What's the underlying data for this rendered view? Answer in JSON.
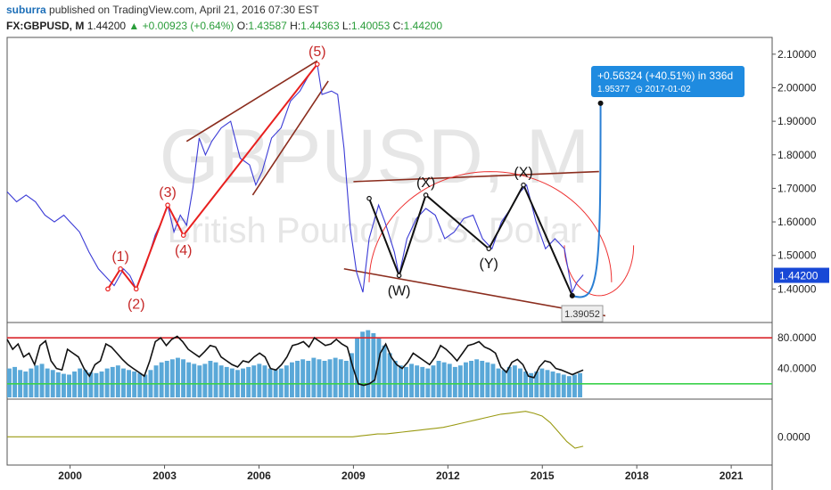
{
  "header": {
    "author": "suburra",
    "published_text": "published on TradingView.com, April 21, 2016 07:30 EST",
    "symbol": "FX:GBPUSD, M",
    "last": "1.44200",
    "change_arrow": "▲",
    "change": "+0.00923 (+0.64%)",
    "open_label": "O:",
    "open": "1.43587",
    "high_label": "H:",
    "high": "1.44363",
    "low_label": "L:",
    "low": "1.40053",
    "close_label": "C:",
    "close": "1.44200"
  },
  "watermark": {
    "symbol": "GBPUSD, M",
    "name": "British Pound / U.S. Dollar"
  },
  "colors": {
    "price": "#3b3bd6",
    "wave_red": "#e8201f",
    "trend_brown": "#8b2d1e",
    "black_wave": "#111111",
    "projection": "#2a7fd4",
    "overbought": "#d9262b",
    "oversold": "#3ad14a",
    "osc_line": "#111111",
    "hist": "#5aa8d8",
    "bottom_line": "#9a9a12",
    "price_tag": "#1848d6",
    "measure_box": "#1f8be0"
  },
  "chart_data": [
    {
      "type": "line",
      "title": "FX:GBPUSD, M",
      "ylim": [
        1.3,
        2.15
      ],
      "y_ticks": [
        "1.40000",
        "1.50000",
        "1.60000",
        "1.70000",
        "1.80000",
        "1.90000",
        "2.00000",
        "2.10000"
      ],
      "y_tick_values": [
        1.4,
        1.5,
        1.6,
        1.7,
        1.8,
        1.9,
        2.0,
        2.1
      ],
      "last_price_label": "1.44200",
      "last_price": 1.442,
      "x_ticks": [
        "2000",
        "2003",
        "2006",
        "2009",
        "2012",
        "2015",
        "2018",
        "2021"
      ],
      "x_tick_values": [
        2000,
        2003,
        2006,
        2009,
        2012,
        2015,
        2018,
        2021
      ],
      "xlim": [
        1998.0,
        2022.3
      ],
      "series": [
        {
          "points": [
            [
              1998.0,
              1.69
            ],
            [
              1998.3,
              1.66
            ],
            [
              1998.6,
              1.68
            ],
            [
              1998.9,
              1.66
            ],
            [
              1999.2,
              1.62
            ],
            [
              1999.5,
              1.6
            ],
            [
              1999.8,
              1.62
            ],
            [
              2000.0,
              1.6
            ],
            [
              2000.3,
              1.57
            ],
            [
              2000.6,
              1.51
            ],
            [
              2000.9,
              1.46
            ],
            [
              2001.2,
              1.43
            ],
            [
              2001.4,
              1.41
            ],
            [
              2001.7,
              1.46
            ],
            [
              2001.9,
              1.44
            ],
            [
              2002.1,
              1.4
            ],
            [
              2002.4,
              1.47
            ],
            [
              2002.7,
              1.56
            ],
            [
              2002.9,
              1.6
            ],
            [
              2003.1,
              1.65
            ],
            [
              2003.3,
              1.57
            ],
            [
              2003.5,
              1.62
            ],
            [
              2003.7,
              1.59
            ],
            [
              2003.9,
              1.7
            ],
            [
              2004.1,
              1.85
            ],
            [
              2004.3,
              1.8
            ],
            [
              2004.5,
              1.84
            ],
            [
              2004.8,
              1.88
            ],
            [
              2005.1,
              1.9
            ],
            [
              2005.4,
              1.79
            ],
            [
              2005.7,
              1.77
            ],
            [
              2005.9,
              1.71
            ],
            [
              2006.1,
              1.75
            ],
            [
              2006.4,
              1.85
            ],
            [
              2006.7,
              1.88
            ],
            [
              2007.0,
              1.96
            ],
            [
              2007.3,
              1.99
            ],
            [
              2007.6,
              2.04
            ],
            [
              2007.85,
              2.07
            ],
            [
              2008.0,
              1.98
            ],
            [
              2008.3,
              1.99
            ],
            [
              2008.5,
              1.98
            ],
            [
              2008.7,
              1.82
            ],
            [
              2008.9,
              1.58
            ],
            [
              2009.1,
              1.45
            ],
            [
              2009.3,
              1.39
            ],
            [
              2009.5,
              1.55
            ],
            [
              2009.8,
              1.65
            ],
            [
              2010.0,
              1.6
            ],
            [
              2010.3,
              1.51
            ],
            [
              2010.45,
              1.44
            ],
            [
              2010.7,
              1.55
            ],
            [
              2011.0,
              1.61
            ],
            [
              2011.3,
              1.64
            ],
            [
              2011.6,
              1.62
            ],
            [
              2011.9,
              1.55
            ],
            [
              2012.2,
              1.57
            ],
            [
              2012.5,
              1.61
            ],
            [
              2012.8,
              1.62
            ],
            [
              2013.1,
              1.55
            ],
            [
              2013.4,
              1.52
            ],
            [
              2013.7,
              1.6
            ],
            [
              2014.0,
              1.64
            ],
            [
              2014.3,
              1.69
            ],
            [
              2014.5,
              1.71
            ],
            [
              2014.8,
              1.6
            ],
            [
              2015.1,
              1.52
            ],
            [
              2015.4,
              1.55
            ],
            [
              2015.7,
              1.52
            ],
            [
              2015.95,
              1.39
            ],
            [
              2016.1,
              1.42
            ],
            [
              2016.3,
              1.442
            ]
          ]
        },
        {
          "name": "elliott-impulse",
          "points": [
            [
              2001.2,
              1.4
            ],
            [
              2001.6,
              1.46
            ],
            [
              2002.1,
              1.4
            ],
            [
              2003.1,
              1.65
            ],
            [
              2003.6,
              1.56
            ],
            [
              2007.85,
              2.07
            ]
          ],
          "labels": [
            "",
            "(1)",
            "(2)",
            "(3)",
            "(4)",
            "(5)"
          ]
        },
        {
          "name": "wxyxy-correction",
          "points": [
            [
              2009.5,
              1.67
            ],
            [
              2010.45,
              1.44
            ],
            [
              2011.3,
              1.68
            ],
            [
              2013.3,
              1.52
            ],
            [
              2014.4,
              1.71
            ],
            [
              2015.95,
              1.38
            ]
          ],
          "labels": [
            "",
            "(W)",
            "(X)",
            "(Y)",
            "(X)",
            ""
          ]
        }
      ],
      "trendlines": [
        {
          "from": [
            2003.7,
            1.84
          ],
          "to": [
            2007.85,
            2.08
          ]
        },
        {
          "from": [
            2005.8,
            1.68
          ],
          "to": [
            2008.2,
            2.02
          ]
        },
        {
          "from": [
            2009.0,
            1.72
          ],
          "to": [
            2016.8,
            1.75
          ]
        },
        {
          "from": [
            2008.7,
            1.46
          ],
          "to": [
            2017.0,
            1.32
          ]
        }
      ],
      "projection": {
        "from": [
          2015.95,
          1.38
        ],
        "to": [
          2016.85,
          1.95377
        ],
        "measure_text": "+0.56324 (+40.51%) in 336d",
        "target_text": "1.95377",
        "date_text": "2017-01-02"
      },
      "low_label": "1.39052"
    },
    {
      "type": "line",
      "ylim": [
        0,
        100
      ],
      "y_ticks": [
        "40.0000",
        "80.0000"
      ],
      "y_tick_values": [
        40,
        80
      ],
      "levels": [
        80,
        20
      ],
      "series": [
        {
          "values": [
            78,
            65,
            72,
            55,
            60,
            45,
            70,
            76,
            50,
            40,
            38,
            65,
            60,
            55,
            40,
            30,
            45,
            50,
            72,
            68,
            60,
            52,
            45,
            40,
            35,
            30,
            50,
            75,
            80,
            70,
            78,
            82,
            75,
            65,
            60,
            55,
            62,
            70,
            68,
            55,
            50,
            45,
            42,
            50,
            48,
            55,
            60,
            55,
            40,
            38,
            45,
            55,
            70,
            72,
            75,
            68,
            80,
            75,
            70,
            72,
            78,
            72,
            68,
            42,
            20,
            18,
            20,
            25,
            60,
            72,
            55,
            45,
            40,
            48,
            60,
            55,
            50,
            45,
            55,
            70,
            65,
            58,
            50,
            60,
            70,
            72,
            75,
            68,
            65,
            60,
            42,
            35,
            48,
            52,
            45,
            30,
            28,
            42,
            50,
            48,
            40,
            38,
            35,
            32,
            35,
            38
          ]
        },
        {
          "name": "histogram",
          "values": [
            40,
            42,
            38,
            36,
            40,
            44,
            46,
            40,
            38,
            35,
            33,
            32,
            36,
            40,
            38,
            35,
            34,
            36,
            40,
            42,
            44,
            40,
            38,
            36,
            34,
            32,
            38,
            44,
            48,
            50,
            52,
            54,
            52,
            48,
            46,
            44,
            46,
            50,
            48,
            44,
            42,
            40,
            38,
            40,
            42,
            44,
            46,
            44,
            40,
            38,
            40,
            44,
            48,
            50,
            52,
            50,
            54,
            52,
            50,
            52,
            54,
            52,
            50,
            60,
            80,
            88,
            90,
            86,
            80,
            70,
            60,
            50,
            44,
            42,
            46,
            44,
            42,
            40,
            44,
            50,
            48,
            46,
            42,
            44,
            48,
            50,
            52,
            50,
            48,
            46,
            40,
            38,
            42,
            44,
            40,
            36,
            34,
            36,
            40,
            38,
            36,
            34,
            32,
            30,
            32,
            34
          ]
        }
      ]
    },
    {
      "type": "line",
      "y_ticks": [
        "0.0000"
      ],
      "y_tick_values": [
        0
      ],
      "ylim": [
        -0.3,
        0.4
      ],
      "series": [
        {
          "values": [
            0,
            0,
            0,
            0,
            0,
            0,
            0,
            0,
            0,
            0,
            0,
            0,
            0,
            0,
            0,
            0,
            0,
            0,
            0,
            0,
            0,
            0,
            0,
            0,
            0,
            0,
            0,
            0,
            0,
            0,
            0,
            0,
            0,
            0,
            0,
            0,
            0,
            0,
            0,
            0,
            0,
            0,
            0,
            0.01,
            0.02,
            0.03,
            0.03,
            0.04,
            0.05,
            0.06,
            0.07,
            0.08,
            0.09,
            0.1,
            0.12,
            0.14,
            0.16,
            0.18,
            0.2,
            0.22,
            0.24,
            0.25,
            0.26,
            0.27,
            0.25,
            0.22,
            0.15,
            0.05,
            -0.05,
            -0.12,
            -0.1
          ]
        }
      ]
    }
  ]
}
